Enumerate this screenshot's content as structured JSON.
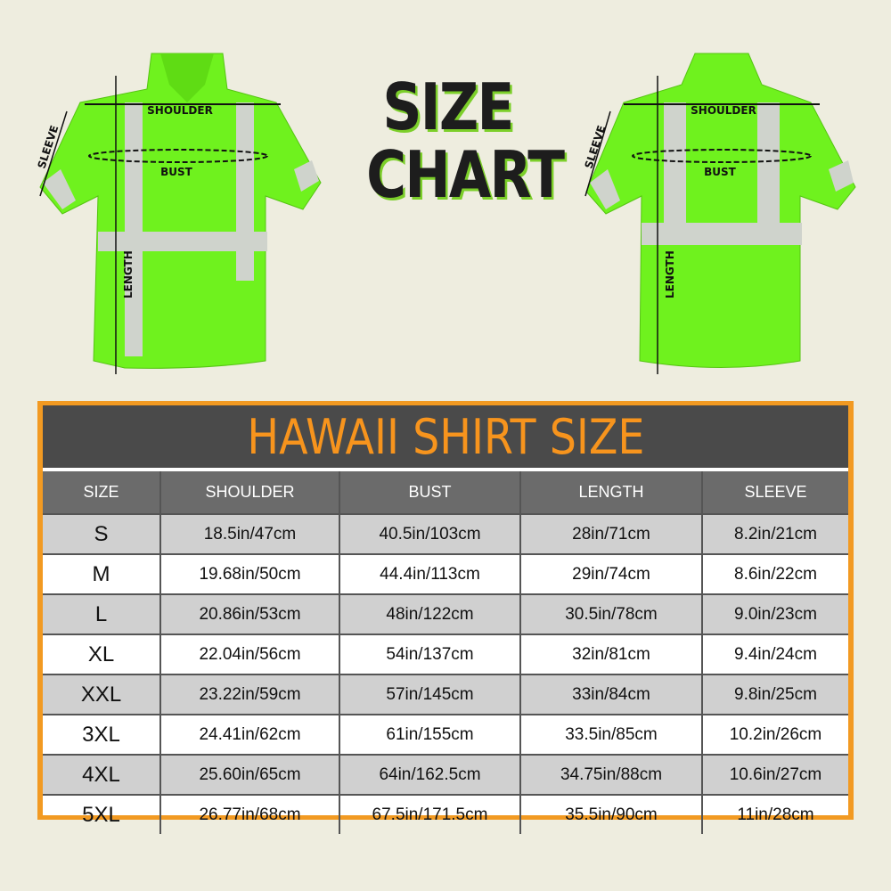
{
  "title": {
    "line1": "SIZE",
    "line2": "CHART"
  },
  "diagram_labels": {
    "shoulder": "SHOULDER",
    "bust": "BUST",
    "sleeve": "SLEEVE",
    "length": "LENGTH"
  },
  "colors": {
    "shirt": "#6ff21e",
    "reflective": "#cfd3cc",
    "accent": "#f29a22",
    "banner": "#4a4a4a"
  },
  "table": {
    "title": "HAWAII SHIRT SIZE",
    "headers": [
      "SIZE",
      "SHOULDER",
      "BUST",
      "LENGTH",
      "SLEEVE"
    ],
    "rows": [
      [
        "S",
        "18.5in/47cm",
        "40.5in/103cm",
        "28in/71cm",
        "8.2in/21cm"
      ],
      [
        "M",
        "19.68in/50cm",
        "44.4in/113cm",
        "29in/74cm",
        "8.6in/22cm"
      ],
      [
        "L",
        "20.86in/53cm",
        "48in/122cm",
        "30.5in/78cm",
        "9.0in/23cm"
      ],
      [
        "XL",
        "22.04in/56cm",
        "54in/137cm",
        "32in/81cm",
        "9.4in/24cm"
      ],
      [
        "XXL",
        "23.22in/59cm",
        "57in/145cm",
        "33in/84cm",
        "9.8in/25cm"
      ],
      [
        "3XL",
        "24.41in/62cm",
        "61in/155cm",
        "33.5in/85cm",
        "10.2in/26cm"
      ],
      [
        "4XL",
        "25.60in/65cm",
        "64in/162.5cm",
        "34.75in/88cm",
        "10.6in/27cm"
      ],
      [
        "5XL",
        "26.77in/68cm",
        "67.5in/171.5cm",
        "35.5in/90cm",
        "11in/28cm"
      ]
    ]
  }
}
